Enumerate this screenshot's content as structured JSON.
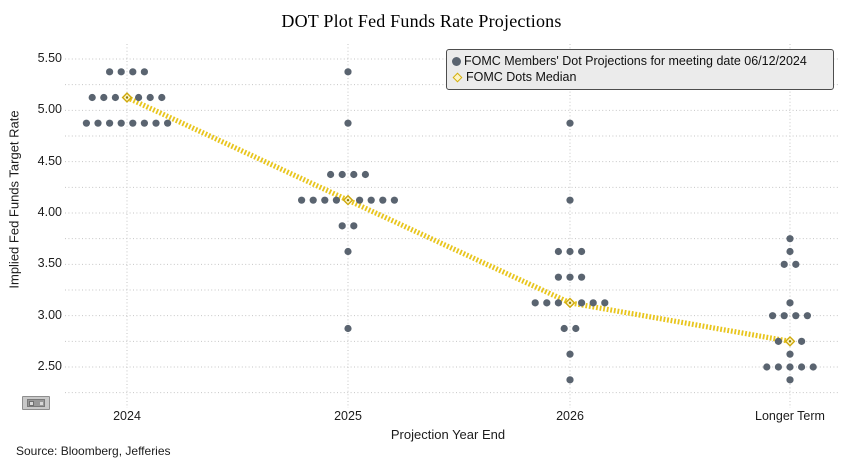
{
  "page": {
    "title": "DOT Plot Fed Funds Rate Projections",
    "source": "Source: Bloomberg, Jefferies"
  },
  "chart_data": {
    "type": "scatter",
    "title": "DOT Plot Fed Funds Rate Projections",
    "xlabel": "Projection Year End",
    "ylabel": "Implied Fed Funds Target Rate",
    "x_categories": [
      "2024",
      "2025",
      "2026",
      "Longer Term"
    ],
    "y_tick_labels": [
      "5.50",
      "5.00",
      "4.50",
      "4.00",
      "3.50",
      "3.00",
      "2.50"
    ],
    "y_tick_values": [
      5.5,
      5.0,
      4.5,
      4.0,
      3.5,
      3.0,
      2.5
    ],
    "ylim": [
      2.25,
      5.625
    ],
    "grid": "dotted horizontal every 0.25 and vertical at each category",
    "legend": {
      "position": "top-right",
      "entries": [
        "FOMC Members' Dot Projections for meeting date 06/12/2024",
        "FOMC Dots Median"
      ]
    },
    "series": [
      {
        "name": "FOMC Members' Dot Projections for meeting date 06/12/2024",
        "marker": "filled-circle",
        "color": "#5a6470",
        "columns": [
          {
            "category": "2024",
            "distribution": [
              {
                "rate": 5.375,
                "count": 4
              },
              {
                "rate": 5.125,
                "count": 7
              },
              {
                "rate": 4.875,
                "count": 8
              }
            ]
          },
          {
            "category": "2025",
            "distribution": [
              {
                "rate": 5.375,
                "count": 1
              },
              {
                "rate": 4.875,
                "count": 1
              },
              {
                "rate": 4.375,
                "count": 4
              },
              {
                "rate": 4.125,
                "count": 9
              },
              {
                "rate": 3.875,
                "count": 2
              },
              {
                "rate": 3.625,
                "count": 1
              },
              {
                "rate": 2.875,
                "count": 1
              }
            ]
          },
          {
            "category": "2026",
            "distribution": [
              {
                "rate": 4.875,
                "count": 1
              },
              {
                "rate": 4.125,
                "count": 1
              },
              {
                "rate": 3.625,
                "count": 3
              },
              {
                "rate": 3.375,
                "count": 3
              },
              {
                "rate": 3.125,
                "count": 7
              },
              {
                "rate": 2.875,
                "count": 2
              },
              {
                "rate": 2.625,
                "count": 1
              },
              {
                "rate": 2.375,
                "count": 1
              }
            ]
          },
          {
            "category": "Longer Term",
            "distribution": [
              {
                "rate": 3.75,
                "count": 1
              },
              {
                "rate": 3.625,
                "count": 1
              },
              {
                "rate": 3.5,
                "count": 2
              },
              {
                "rate": 3.125,
                "count": 1
              },
              {
                "rate": 3.0,
                "count": 4
              },
              {
                "rate": 2.75,
                "count": 3
              },
              {
                "rate": 2.625,
                "count": 1
              },
              {
                "rate": 2.5,
                "count": 5
              },
              {
                "rate": 2.375,
                "count": 1
              }
            ]
          }
        ]
      },
      {
        "name": "FOMC Dots Median",
        "marker": "yellow-diamond-dashed-line",
        "color": "#e8c51d",
        "values": [
          {
            "category": "2024",
            "median": 5.125
          },
          {
            "category": "2025",
            "median": 4.125
          },
          {
            "category": "2026",
            "median": 3.125
          },
          {
            "category": "Longer Term",
            "median": 2.75
          }
        ]
      }
    ]
  },
  "colors": {
    "dot": "#5a6470",
    "median_line": "#e8c51d",
    "median_marker_fill": "#fdf4c4",
    "median_marker_stroke": "#cfa90d",
    "grid": "#c6c6c6",
    "legend_background": "#ebebeb",
    "legend_border": "#4d4d4d"
  }
}
